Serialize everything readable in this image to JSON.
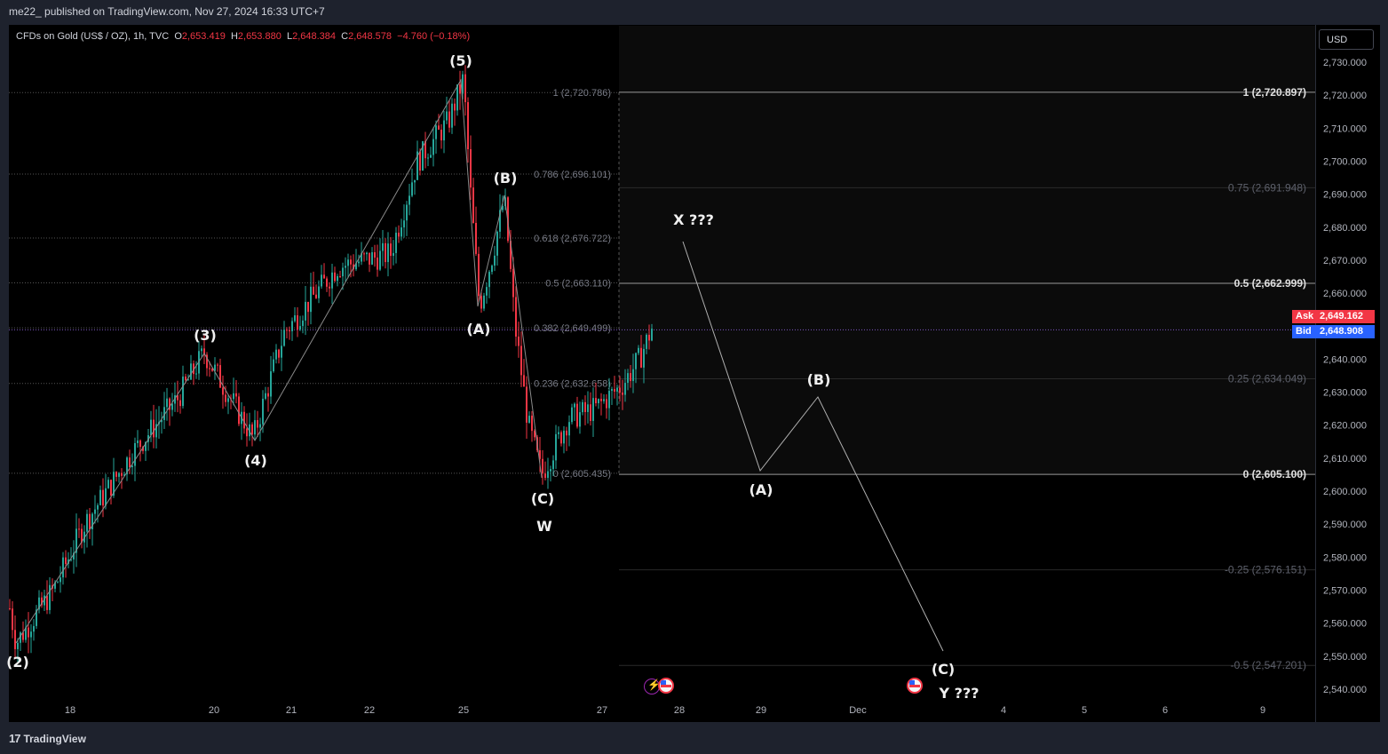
{
  "header": {
    "publisher": "me22_ published on TradingView.com, Nov 27, 2024 16:33 UTC+7"
  },
  "symbol": {
    "name": "CFDs on Gold (US$ / OZ), 1h, TVC",
    "open_label": "O",
    "open": "2,653.419",
    "high_label": "H",
    "high": "2,653.880",
    "low_label": "L",
    "low": "2,648.384",
    "close_label": "C",
    "close": "2,648.578",
    "change": "−4.760 (−0.18%)"
  },
  "currency": "USD",
  "ask": {
    "label": "Ask",
    "value": "2,649.162"
  },
  "bid": {
    "label": "Bid",
    "value": "2,648.908"
  },
  "footer": {
    "logo_text": "TradingView",
    "logo_mark": "17"
  },
  "colors": {
    "background": "#000000",
    "bull": "#26a69a",
    "bear": "#f23645",
    "ask": "#f23645",
    "bid": "#2962ff",
    "text": "#d1d4dc"
  },
  "icons": [
    "tv-logo-icon",
    "us-flag-icon",
    "event-lightning-icon"
  ],
  "price_ticks": [
    "2,730.000",
    "2,720.000",
    "2,710.000",
    "2,700.000",
    "2,690.000",
    "2,680.000",
    "2,670.000",
    "2,660.000",
    "2,640.000",
    "2,630.000",
    "2,620.000",
    "2,610.000",
    "2,600.000",
    "2,590.000",
    "2,580.000",
    "2,570.000",
    "2,560.000",
    "2,550.000",
    "2,540.000"
  ],
  "time_ticks": [
    "18",
    "20",
    "21",
    "22",
    "25",
    "27",
    "28",
    "29",
    "Dec",
    "4",
    "5",
    "6",
    "9"
  ],
  "fib_left": [
    {
      "label": "1 (2,720.786)",
      "value": 2720.786
    },
    {
      "label": "0.786 (2,696.101)",
      "value": 2696.101
    },
    {
      "label": "0.618 (2,676.722)",
      "value": 2676.722
    },
    {
      "label": "0.5 (2,663.110)",
      "value": 2663.11
    },
    {
      "label": "0.382 (2,649.499)",
      "value": 2649.499
    },
    {
      "label": "0.236 (2,632.658)",
      "value": 2632.658
    },
    {
      "label": "0 (2,605.435)",
      "value": 2605.435
    }
  ],
  "fib_right": [
    {
      "label": "1 (2,720.897)",
      "value": 2720.897,
      "bold": true
    },
    {
      "label": "0.75 (2,691.948)",
      "value": 2691.948,
      "bold": false
    },
    {
      "label": "0.5 (2,662.999)",
      "value": 2662.999,
      "bold": true
    },
    {
      "label": "0.25 (2,634.049)",
      "value": 2634.049,
      "bold": false
    },
    {
      "label": "0 (2,605.100)",
      "value": 2605.1,
      "bold": true
    },
    {
      "label": "-0.25 (2,576.151)",
      "value": 2576.151,
      "bold": false
    },
    {
      "label": "-0.5 (2,547.201)",
      "value": 2547.201,
      "bold": false
    }
  ],
  "wave_labels": [
    "(2)",
    "(3)",
    "(4)",
    "(5)",
    "(A)",
    "(B)",
    "(C)",
    "W",
    "X ???",
    "(A)",
    "(B)",
    "(C)",
    "Y ???"
  ],
  "chart_data": {
    "type": "candlestick",
    "title": "CFDs on Gold (US$ / OZ), 1h, TVC",
    "ylim": [
      2535,
      2735
    ],
    "wave_path_past": [
      {
        "t": "Nov 15",
        "price": 2554
      },
      {
        "t": "Nov 19",
        "price": 2642
      },
      {
        "t": "Nov 20",
        "price": 2616
      },
      {
        "t": "Nov 25",
        "price": 2725
      },
      {
        "t": "Nov 25",
        "price": 2656
      },
      {
        "t": "Nov 25",
        "price": 2689
      },
      {
        "t": "Nov 26",
        "price": 2605
      }
    ],
    "wave_path_projection": [
      {
        "t": "Nov 28",
        "price": 2677
      },
      {
        "t": "Nov 29",
        "price": 2607
      },
      {
        "t": "Nov 30",
        "price": 2628
      },
      {
        "t": "Dec 3",
        "price": 2552
      }
    ],
    "last_price": 2648.908
  }
}
